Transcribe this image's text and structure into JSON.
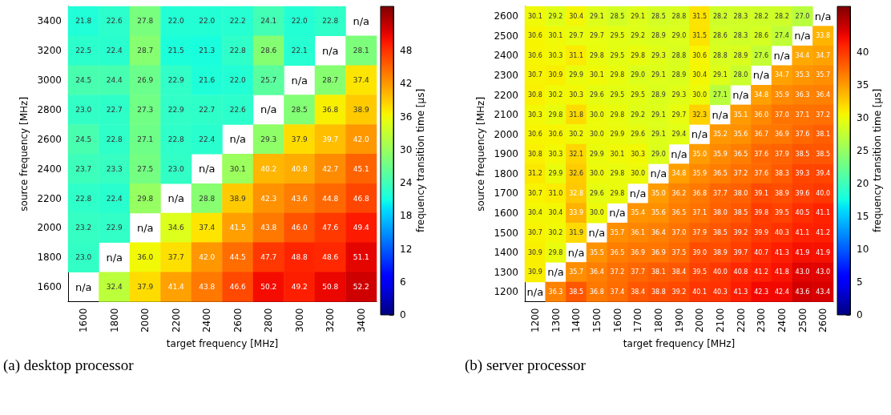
{
  "chart_data": [
    {
      "type": "heatmap",
      "xlabel": "target frequency [MHz]",
      "ylabel": "source frequency [MHz]",
      "clabel": "frequency transition time [µs]",
      "data_labels": true,
      "categories": [
        "1600",
        "1800",
        "2000",
        "2200",
        "2400",
        "2600",
        "2800",
        "3000",
        "3200",
        "3400"
      ],
      "y_categories": [
        "3400",
        "3200",
        "3000",
        "2800",
        "2600",
        "2400",
        "2200",
        "2000",
        "1800",
        "1600"
      ],
      "cells": [
        [
          21.8,
          22.6,
          27.8,
          22.0,
          22.0,
          22.2,
          24.1,
          22.0,
          22.8,
          null
        ],
        [
          22.5,
          22.4,
          28.7,
          21.5,
          21.3,
          22.8,
          28.6,
          22.1,
          null,
          28.1
        ],
        [
          24.5,
          24.4,
          26.9,
          22.9,
          21.6,
          22.0,
          25.7,
          null,
          28.7,
          37.4
        ],
        [
          23.0,
          22.7,
          27.3,
          22.9,
          22.7,
          22.6,
          null,
          28.5,
          36.8,
          38.9
        ],
        [
          24.5,
          22.8,
          27.1,
          22.8,
          22.4,
          null,
          29.3,
          37.9,
          39.7,
          42.0
        ],
        [
          23.7,
          23.3,
          27.5,
          23.0,
          null,
          30.1,
          40.2,
          40.8,
          42.7,
          45.1
        ],
        [
          22.8,
          22.4,
          29.8,
          null,
          28.8,
          38.9,
          42.3,
          43.6,
          44.8,
          46.8
        ],
        [
          23.2,
          22.9,
          null,
          34.6,
          37.4,
          41.5,
          43.8,
          46.0,
          47.6,
          49.4
        ],
        [
          23.0,
          null,
          36.0,
          37.7,
          42.0,
          44.5,
          47.7,
          48.8,
          48.6,
          51.1
        ],
        [
          null,
          32.4,
          37.9,
          41.4,
          43.8,
          46.6,
          50.2,
          49.2,
          50.8,
          52.2
        ]
      ],
      "cell_labels": [
        [
          "21.8",
          "22.6",
          "27.8",
          "22.0",
          "22.0",
          "22.2",
          "24.1",
          "22.0",
          "22.8",
          "n/a"
        ],
        [
          "22.5",
          "22.4",
          "28.7",
          "21.5",
          "21.3",
          "22.8",
          "28.6",
          "22.1",
          "n/a",
          "28.1"
        ],
        [
          "24.5",
          "24.4",
          "26.9",
          "22.9",
          "21.6",
          "22.0",
          "25.7",
          "n/a",
          "28.7",
          "37.4"
        ],
        [
          "23.0",
          "22.7",
          "27.3",
          "22.9",
          "22.7",
          "22.6",
          "n/a",
          "28.5",
          "36.8",
          "38.9"
        ],
        [
          "24.5",
          "22.8",
          "27.1",
          "22.8",
          "22.4",
          "n/a",
          "29.3",
          "37.9",
          "39.7",
          "42.0"
        ],
        [
          "23.7",
          "23.3",
          "27.5",
          "23.0",
          "n/a",
          "30.1",
          "40.2",
          "40.8",
          "42.7",
          "45.1"
        ],
        [
          "22.8",
          "22.4",
          "29.8",
          "n/a",
          "28.8",
          "38.9",
          "42.3",
          "43.6",
          "44.8",
          "46.8"
        ],
        [
          "23.2",
          "22.9",
          "n/a",
          "34.6",
          "37.4",
          "41.5",
          "43.8",
          "46.0",
          "47.6",
          "49.4"
        ],
        [
          "23.0",
          "n/a",
          "36.0",
          "37.7",
          "42.0",
          "44.5",
          "47.7",
          "48.8",
          "48.6",
          "51.1"
        ],
        [
          "n/a",
          "32.4",
          "37.9",
          "41.4",
          "43.8",
          "46.6",
          "50.2",
          "49.2",
          "50.8",
          "52.2"
        ]
      ],
      "clim": [
        0,
        56
      ],
      "cticks": [
        0,
        6,
        12,
        18,
        24,
        30,
        36,
        42,
        48
      ],
      "annotations": [
        "(a) desktop processor"
      ]
    },
    {
      "type": "heatmap",
      "xlabel": "target frequency [MHz]",
      "ylabel": "source frequency [MHz]",
      "clabel": "frequency transition time [µs]",
      "data_labels": true,
      "categories": [
        "1200",
        "1300",
        "1400",
        "1500",
        "1600",
        "1700",
        "1800",
        "1900",
        "2000",
        "2100",
        "2200",
        "2300",
        "2400",
        "2500",
        "2600"
      ],
      "y_categories": [
        "2600",
        "2500",
        "2400",
        "2300",
        "2200",
        "2100",
        "2000",
        "1900",
        "1800",
        "1700",
        "1600",
        "1500",
        "1400",
        "1300",
        "1200"
      ],
      "cells": [
        [
          30.1,
          29.2,
          30.4,
          29.1,
          28.5,
          29.1,
          28.5,
          28.8,
          31.5,
          28.2,
          28.3,
          28.2,
          28.2,
          27.0,
          null
        ],
        [
          30.6,
          30.1,
          29.7,
          29.7,
          29.5,
          29.2,
          28.9,
          29.0,
          31.5,
          28.6,
          28.3,
          28.6,
          27.4,
          null,
          33.8
        ],
        [
          30.6,
          30.3,
          31.1,
          29.8,
          29.5,
          29.8,
          29.3,
          28.8,
          30.6,
          28.8,
          28.9,
          27.6,
          null,
          34.4,
          34.7
        ],
        [
          30.7,
          30.9,
          29.9,
          30.1,
          29.8,
          29.0,
          29.1,
          28.9,
          30.4,
          29.1,
          28.0,
          null,
          34.7,
          35.3,
          35.7
        ],
        [
          30.8,
          30.2,
          30.3,
          29.6,
          29.5,
          29.5,
          28.9,
          29.3,
          30.0,
          27.1,
          null,
          34.8,
          35.9,
          36.3,
          36.4
        ],
        [
          30.3,
          29.8,
          31.8,
          30.0,
          29.8,
          29.2,
          29.1,
          29.7,
          32.3,
          null,
          35.1,
          36.0,
          37.0,
          37.1,
          37.2
        ],
        [
          30.6,
          30.6,
          30.2,
          30.0,
          29.9,
          29.6,
          29.1,
          29.4,
          null,
          35.2,
          35.6,
          36.7,
          36.9,
          37.6,
          38.1
        ],
        [
          30.8,
          30.3,
          32.1,
          29.9,
          30.1,
          30.3,
          29.0,
          null,
          35.0,
          35.9,
          36.5,
          37.6,
          37.9,
          38.5,
          38.5
        ],
        [
          31.2,
          29.9,
          32.6,
          30.0,
          29.8,
          30.0,
          null,
          34.8,
          35.9,
          36.5,
          37.2,
          37.6,
          38.3,
          39.3,
          39.4
        ],
        [
          30.7,
          31.0,
          32.8,
          29.6,
          29.8,
          null,
          35.0,
          36.2,
          36.8,
          37.7,
          38.0,
          39.1,
          38.9,
          39.6,
          40.0
        ],
        [
          30.4,
          30.4,
          33.9,
          30.0,
          null,
          35.4,
          35.6,
          36.5,
          37.1,
          38.0,
          38.5,
          39.8,
          39.5,
          40.5,
          41.1
        ],
        [
          30.7,
          30.2,
          31.9,
          null,
          35.7,
          36.1,
          36.4,
          37.0,
          37.9,
          38.5,
          39.2,
          39.9,
          40.3,
          41.1,
          41.2
        ],
        [
          30.9,
          29.8,
          null,
          35.5,
          36.5,
          36.9,
          36.9,
          37.5,
          39.0,
          38.9,
          39.7,
          40.7,
          41.3,
          41.9,
          41.9
        ],
        [
          30.9,
          null,
          35.7,
          36.4,
          37.2,
          37.7,
          38.1,
          38.4,
          39.5,
          40.0,
          40.8,
          41.2,
          41.8,
          43.0,
          43.0
        ],
        [
          null,
          36.3,
          38.5,
          36.8,
          37.4,
          38.4,
          38.8,
          39.2,
          40.1,
          40.3,
          41.3,
          42.3,
          42.4,
          43.6,
          43.4
        ]
      ],
      "cell_labels": [
        [
          "30.1",
          "29.2",
          "30.4",
          "29.1",
          "28.5",
          "29.1",
          "28.5",
          "28.8",
          "31.5",
          "28.2",
          "28.3",
          "28.2",
          "28.2",
          "27.0",
          "n/a"
        ],
        [
          "30.6",
          "30.1",
          "29.7",
          "29.7",
          "29.5",
          "29.2",
          "28.9",
          "29.0",
          "31.5",
          "28.6",
          "28.3",
          "28.6",
          "27.4",
          "n/a",
          "33.8"
        ],
        [
          "30.6",
          "30.3",
          "31.1",
          "29.8",
          "29.5",
          "29.8",
          "29.3",
          "28.8",
          "30.6",
          "28.8",
          "28.9",
          "27.6",
          "n/a",
          "34.4",
          "34.7"
        ],
        [
          "30.7",
          "30.9",
          "29.9",
          "30.1",
          "29.8",
          "29.0",
          "29.1",
          "28.9",
          "30.4",
          "29.1",
          "28.0",
          "n/a",
          "34.7",
          "35.3",
          "35.7"
        ],
        [
          "30.8",
          "30.2",
          "30.3",
          "29.6",
          "29.5",
          "29.5",
          "28.9",
          "29.3",
          "30.0",
          "27.1",
          "n/a",
          "34.8",
          "35.9",
          "36.3",
          "36.4"
        ],
        [
          "30.3",
          "29.8",
          "31.8",
          "30.0",
          "29.8",
          "29.2",
          "29.1",
          "29.7",
          "32.3",
          "n/a",
          "35.1",
          "36.0",
          "37.0",
          "37.1",
          "37.2"
        ],
        [
          "30.6",
          "30.6",
          "30.2",
          "30.0",
          "29.9",
          "29.6",
          "29.1",
          "29.4",
          "n/a",
          "35.2",
          "35.6",
          "36.7",
          "36.9",
          "37.6",
          "38.1"
        ],
        [
          "30.8",
          "30.3",
          "32.1",
          "29.9",
          "30.1",
          "30.3",
          "29.0",
          "n/a",
          "35.0",
          "35.9",
          "36.5",
          "37.6",
          "37.9",
          "38.5",
          "38.5"
        ],
        [
          "31.2",
          "29.9",
          "32.6",
          "30.0",
          "29.8",
          "30.0",
          "n/a",
          "34.8",
          "35.9",
          "36.5",
          "37.2",
          "37.6",
          "38.3",
          "39.3",
          "39.4"
        ],
        [
          "30.7",
          "31.0",
          "32.8",
          "29.6",
          "29.8",
          "n/a",
          "35.0",
          "36.2",
          "36.8",
          "37.7",
          "38.0",
          "39.1",
          "38.9",
          "39.6",
          "40.0"
        ],
        [
          "30.4",
          "30.4",
          "33.9",
          "30.0",
          "n/a",
          "35.4",
          "35.6",
          "36.5",
          "37.1",
          "38.0",
          "38.5",
          "39.8",
          "39.5",
          "40.5",
          "41.1"
        ],
        [
          "30.7",
          "30.2",
          "31.9",
          "n/a",
          "35.7",
          "36.1",
          "36.4",
          "37.0",
          "37.9",
          "38.5",
          "39.2",
          "39.9",
          "40.3",
          "41.1",
          "41.2"
        ],
        [
          "30.9",
          "29.8",
          "n/a",
          "35.5",
          "36.5",
          "36.9",
          "36.9",
          "37.5",
          "39.0",
          "38.9",
          "39.7",
          "40.7",
          "41.3",
          "41.9",
          "41.9"
        ],
        [
          "30.9",
          "n/a",
          "35.7",
          "36.4",
          "37.2",
          "37.7",
          "38.1",
          "38.4",
          "39.5",
          "40.0",
          "40.8",
          "41.2",
          "41.8",
          "43.0",
          "43.0"
        ],
        [
          "n/a",
          "36.3",
          "38.5",
          "36.8",
          "37.4",
          "38.4",
          "38.8",
          "39.2",
          "40.1",
          "40.3",
          "41.3",
          "42.3",
          "42.4",
          "43.6",
          "43.4"
        ]
      ],
      "clim": [
        0,
        47
      ],
      "cticks": [
        0,
        5,
        10,
        15,
        20,
        25,
        30,
        35,
        40
      ],
      "annotations": [
        "(b) server processor"
      ]
    }
  ]
}
